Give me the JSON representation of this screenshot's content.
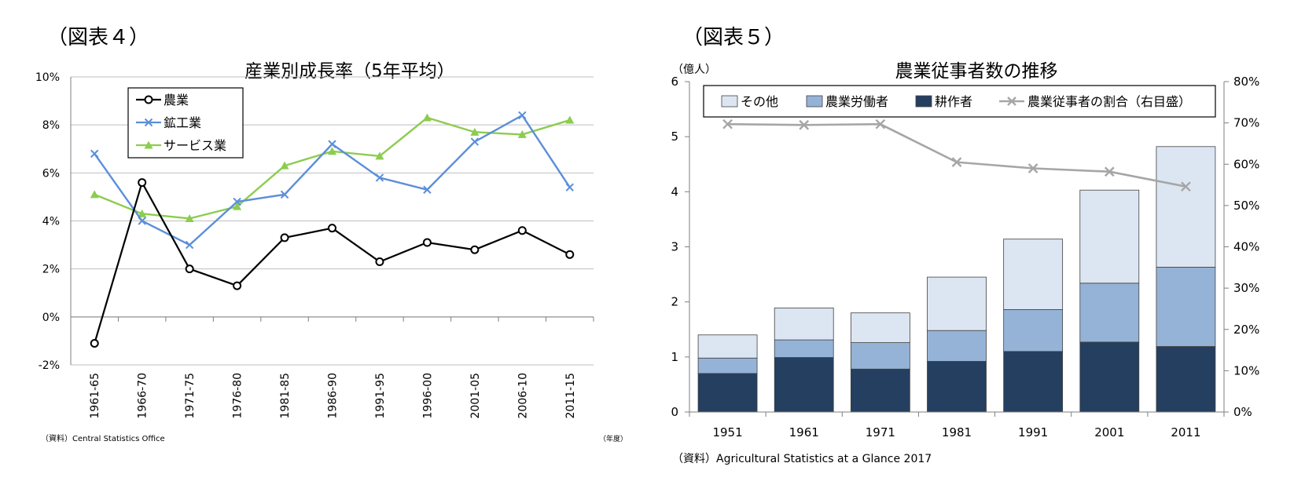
{
  "colors": {
    "agri_line": "#000000",
    "mining_line": "#5b8fd9",
    "services_line": "#8ccc4f",
    "other_bar": "#dce6f2",
    "labor_bar": "#95b3d7",
    "farmer_bar": "#243f60",
    "share_line": "#a6a6a6",
    "grid": "#bfbfbf",
    "axis": "#7f7f7f"
  },
  "chart_data": [
    {
      "type": "line",
      "figure_label": "（図表４）",
      "title": "産業別成長率（5年平均）",
      "categories": [
        "1961-65",
        "1966-70",
        "1971-75",
        "1976-80",
        "1981-85",
        "1986-90",
        "1991-95",
        "1996-00",
        "2001-05",
        "2006-10",
        "2011-15"
      ],
      "series": [
        {
          "name": "農業",
          "values": [
            -1.1,
            5.6,
            2.0,
            1.3,
            3.3,
            3.7,
            2.3,
            3.1,
            2.8,
            3.6,
            2.6
          ]
        },
        {
          "name": "鉱工業",
          "values": [
            6.8,
            4.0,
            3.0,
            4.8,
            5.1,
            7.2,
            5.8,
            5.3,
            7.3,
            8.4,
            5.4
          ]
        },
        {
          "name": "サービス業",
          "values": [
            5.1,
            4.3,
            4.1,
            4.6,
            6.3,
            6.9,
            6.7,
            8.3,
            7.7,
            7.6,
            8.2
          ]
        }
      ],
      "ylim": [
        -2,
        10
      ],
      "yticks": [
        "-2%",
        "0%",
        "2%",
        "4%",
        "6%",
        "8%",
        "10%"
      ],
      "ytick_values": [
        -2,
        0,
        2,
        4,
        6,
        8,
        10
      ],
      "unit_note": "（年度）",
      "source": "（資料）Central Statistics Office",
      "legend": "top-left",
      "grid": true
    },
    {
      "type": "bar",
      "figure_label": "（図表５）",
      "title": "農業従事者数の推移",
      "y_unit": "（億人）",
      "categories": [
        "1951",
        "1961",
        "1971",
        "1981",
        "1991",
        "2001",
        "2011"
      ],
      "series": [
        {
          "name": "耕作者",
          "values": [
            0.7,
            0.99,
            0.78,
            0.92,
            1.1,
            1.27,
            1.19
          ]
        },
        {
          "name": "農業労働者",
          "values": [
            0.28,
            0.32,
            0.48,
            0.56,
            0.76,
            1.07,
            1.44
          ]
        },
        {
          "name": "その他",
          "values": [
            0.42,
            0.58,
            0.54,
            0.97,
            1.28,
            1.69,
            2.19
          ]
        },
        {
          "name": "農業従事者の割合（右目盛）",
          "type": "line",
          "axis": "right",
          "values": [
            69.7,
            69.5,
            69.7,
            60.5,
            59.0,
            58.2,
            54.6
          ]
        }
      ],
      "stacked": true,
      "ylim": [
        0,
        6
      ],
      "yticks": [
        "0",
        "1",
        "2",
        "3",
        "4",
        "5",
        "6"
      ],
      "ytick_values": [
        0,
        1,
        2,
        3,
        4,
        5,
        6
      ],
      "y2lim": [
        0,
        80
      ],
      "y2ticks": [
        "0%",
        "10%",
        "20%",
        "30%",
        "40%",
        "50%",
        "60%",
        "70%",
        "80%"
      ],
      "y2tick_values": [
        0,
        10,
        20,
        30,
        40,
        50,
        60,
        70,
        80
      ],
      "legend_order": [
        "その他",
        "農業労働者",
        "耕作者",
        "農業従事者の割合（右目盛）"
      ],
      "source": "（資料）Agricultural Statistics at a Glance 2017",
      "legend": "top",
      "grid": false
    }
  ]
}
